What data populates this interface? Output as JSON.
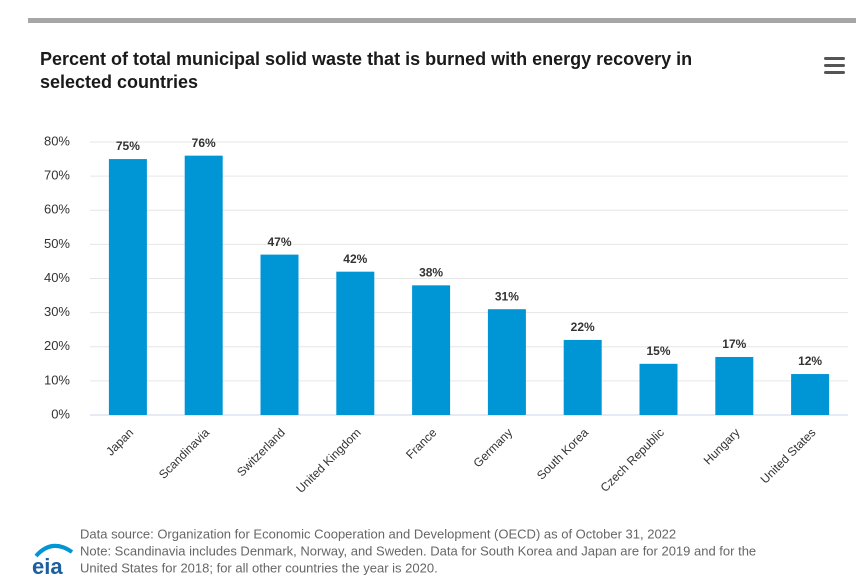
{
  "chart_data": {
    "type": "bar",
    "title": [
      "Percent of total municipal solid waste that is burned with energy recovery in",
      "selected countries"
    ],
    "categories": [
      "Japan",
      "Scandinavia",
      "Switzerland",
      "United Kingdom",
      "France",
      "Germany",
      "South Korea",
      "Czech Republic",
      "Hungary",
      "United States"
    ],
    "values": [
      75,
      76,
      47,
      42,
      38,
      31,
      22,
      15,
      17,
      12
    ],
    "value_labels": [
      "75%",
      "76%",
      "47%",
      "42%",
      "38%",
      "31%",
      "22%",
      "15%",
      "17%",
      "12%"
    ],
    "color": "#0096d6",
    "ylim": [
      0,
      80
    ],
    "yticks": [
      {
        "value": 0,
        "label": "0%"
      },
      {
        "value": 10,
        "label": "10%"
      },
      {
        "value": 20,
        "label": "20%"
      },
      {
        "value": 30,
        "label": "30%"
      },
      {
        "value": 40,
        "label": "40%"
      },
      {
        "value": 50,
        "label": "50%"
      },
      {
        "value": 60,
        "label": "60%"
      },
      {
        "value": 70,
        "label": "70%"
      },
      {
        "value": 80,
        "label": "80%"
      }
    ],
    "grid": true,
    "notes": [
      "Data source: Organization for Economic Cooperation and Development (OECD) as of October 31, 2022",
      "Note: Scandinavia includes Denmark, Norway, and Sweden. Data for South Korea and Japan are for 2019 and for the",
      "United States for 2018; for all other countries the year is 2020."
    ],
    "logo": "eia"
  }
}
